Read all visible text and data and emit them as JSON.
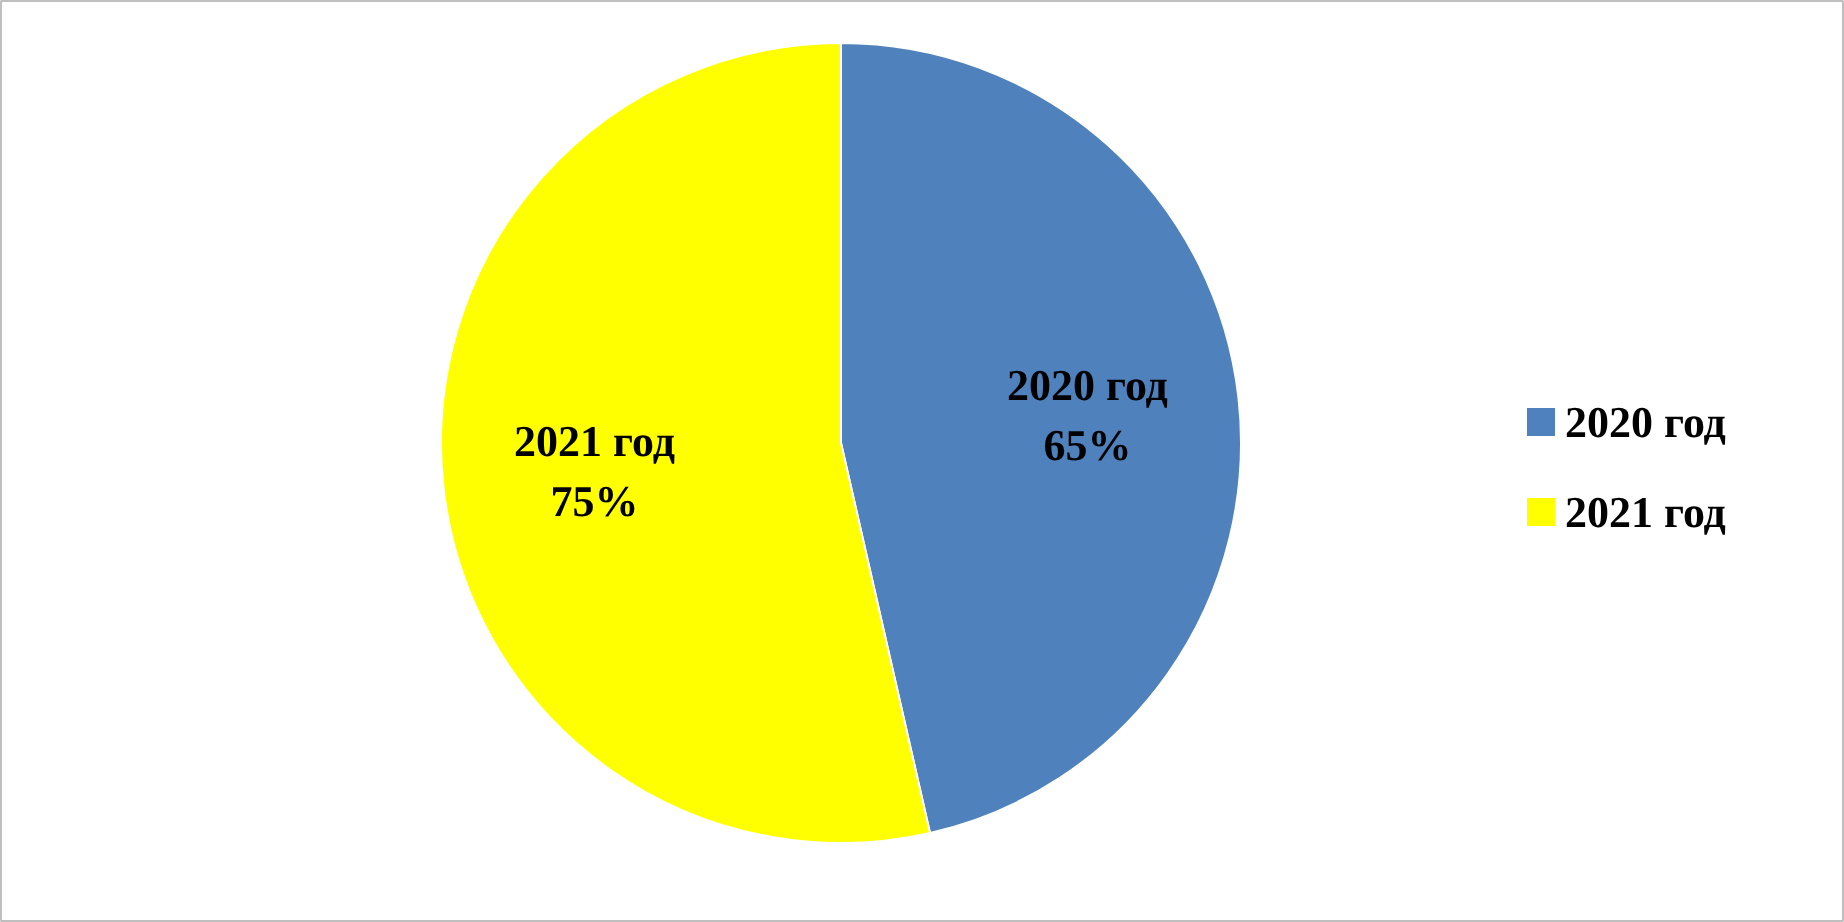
{
  "chart_data": {
    "type": "pie",
    "categories": [
      "2020 год",
      "2021 год"
    ],
    "values": [
      65,
      75
    ],
    "colors": [
      "#4f81bd",
      "#ffff00"
    ],
    "value_labels": [
      "65%",
      "75%"
    ],
    "legend": "right"
  }
}
